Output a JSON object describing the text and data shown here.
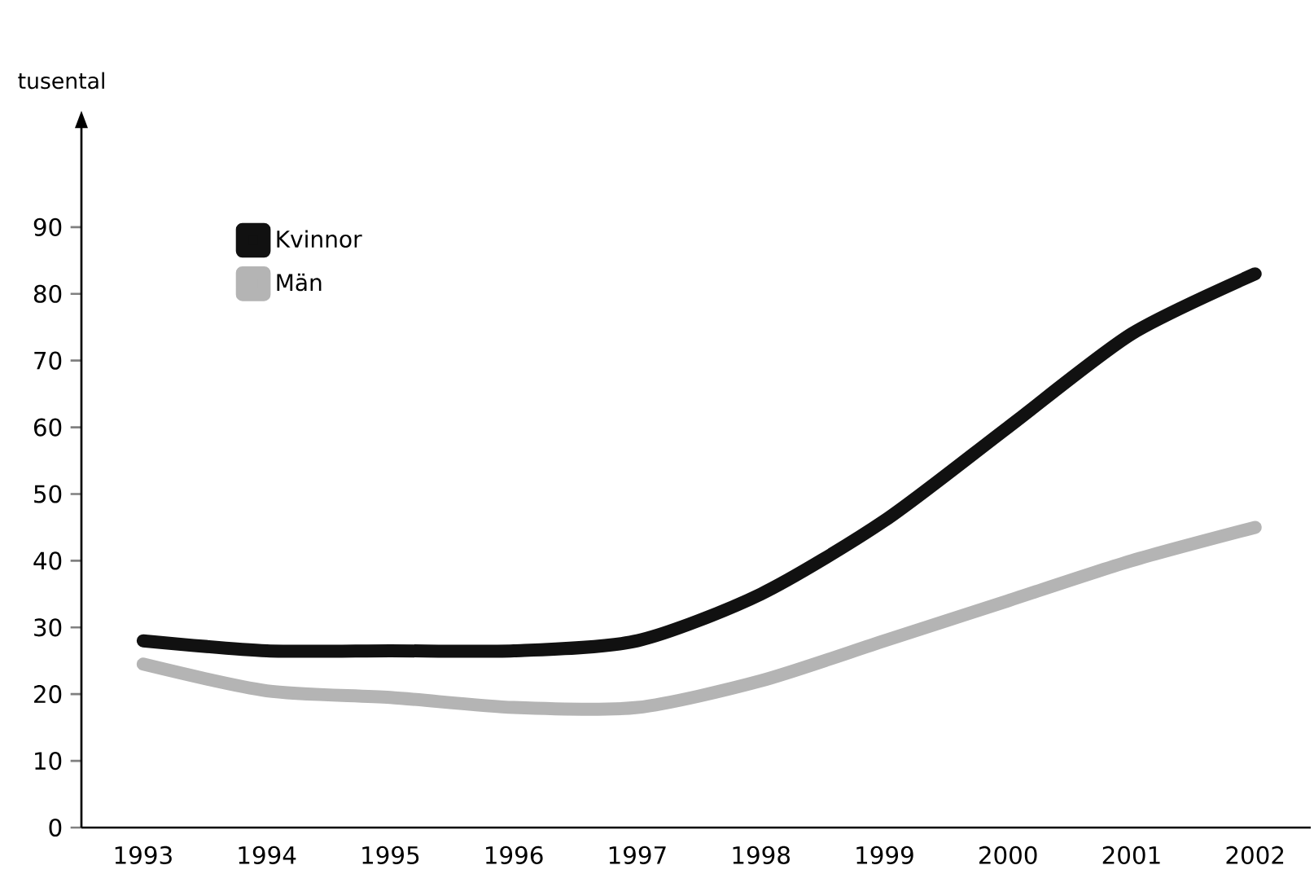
{
  "chart_data": {
    "type": "line",
    "ylabel": "tusental",
    "categories": [
      "1993",
      "1994",
      "1995",
      "1996",
      "1997",
      "1998",
      "1999",
      "2000",
      "2001",
      "2002"
    ],
    "series": [
      {
        "name": "Kvinnor",
        "color": "#111111",
        "values": [
          28,
          26.5,
          26.5,
          26.5,
          28,
          35,
          46,
          60,
          74,
          83
        ]
      },
      {
        "name": "Män",
        "color": "#b4b4b4",
        "values": [
          24.5,
          20.5,
          19.5,
          18,
          18,
          22,
          28,
          34,
          40,
          45
        ]
      }
    ],
    "ylim": [
      0,
      105
    ],
    "yticks": [
      0,
      10,
      20,
      30,
      40,
      50,
      60,
      70,
      80,
      90
    ],
    "grid": false,
    "legend": "top left",
    "marker": "none",
    "line_style": "solid"
  }
}
